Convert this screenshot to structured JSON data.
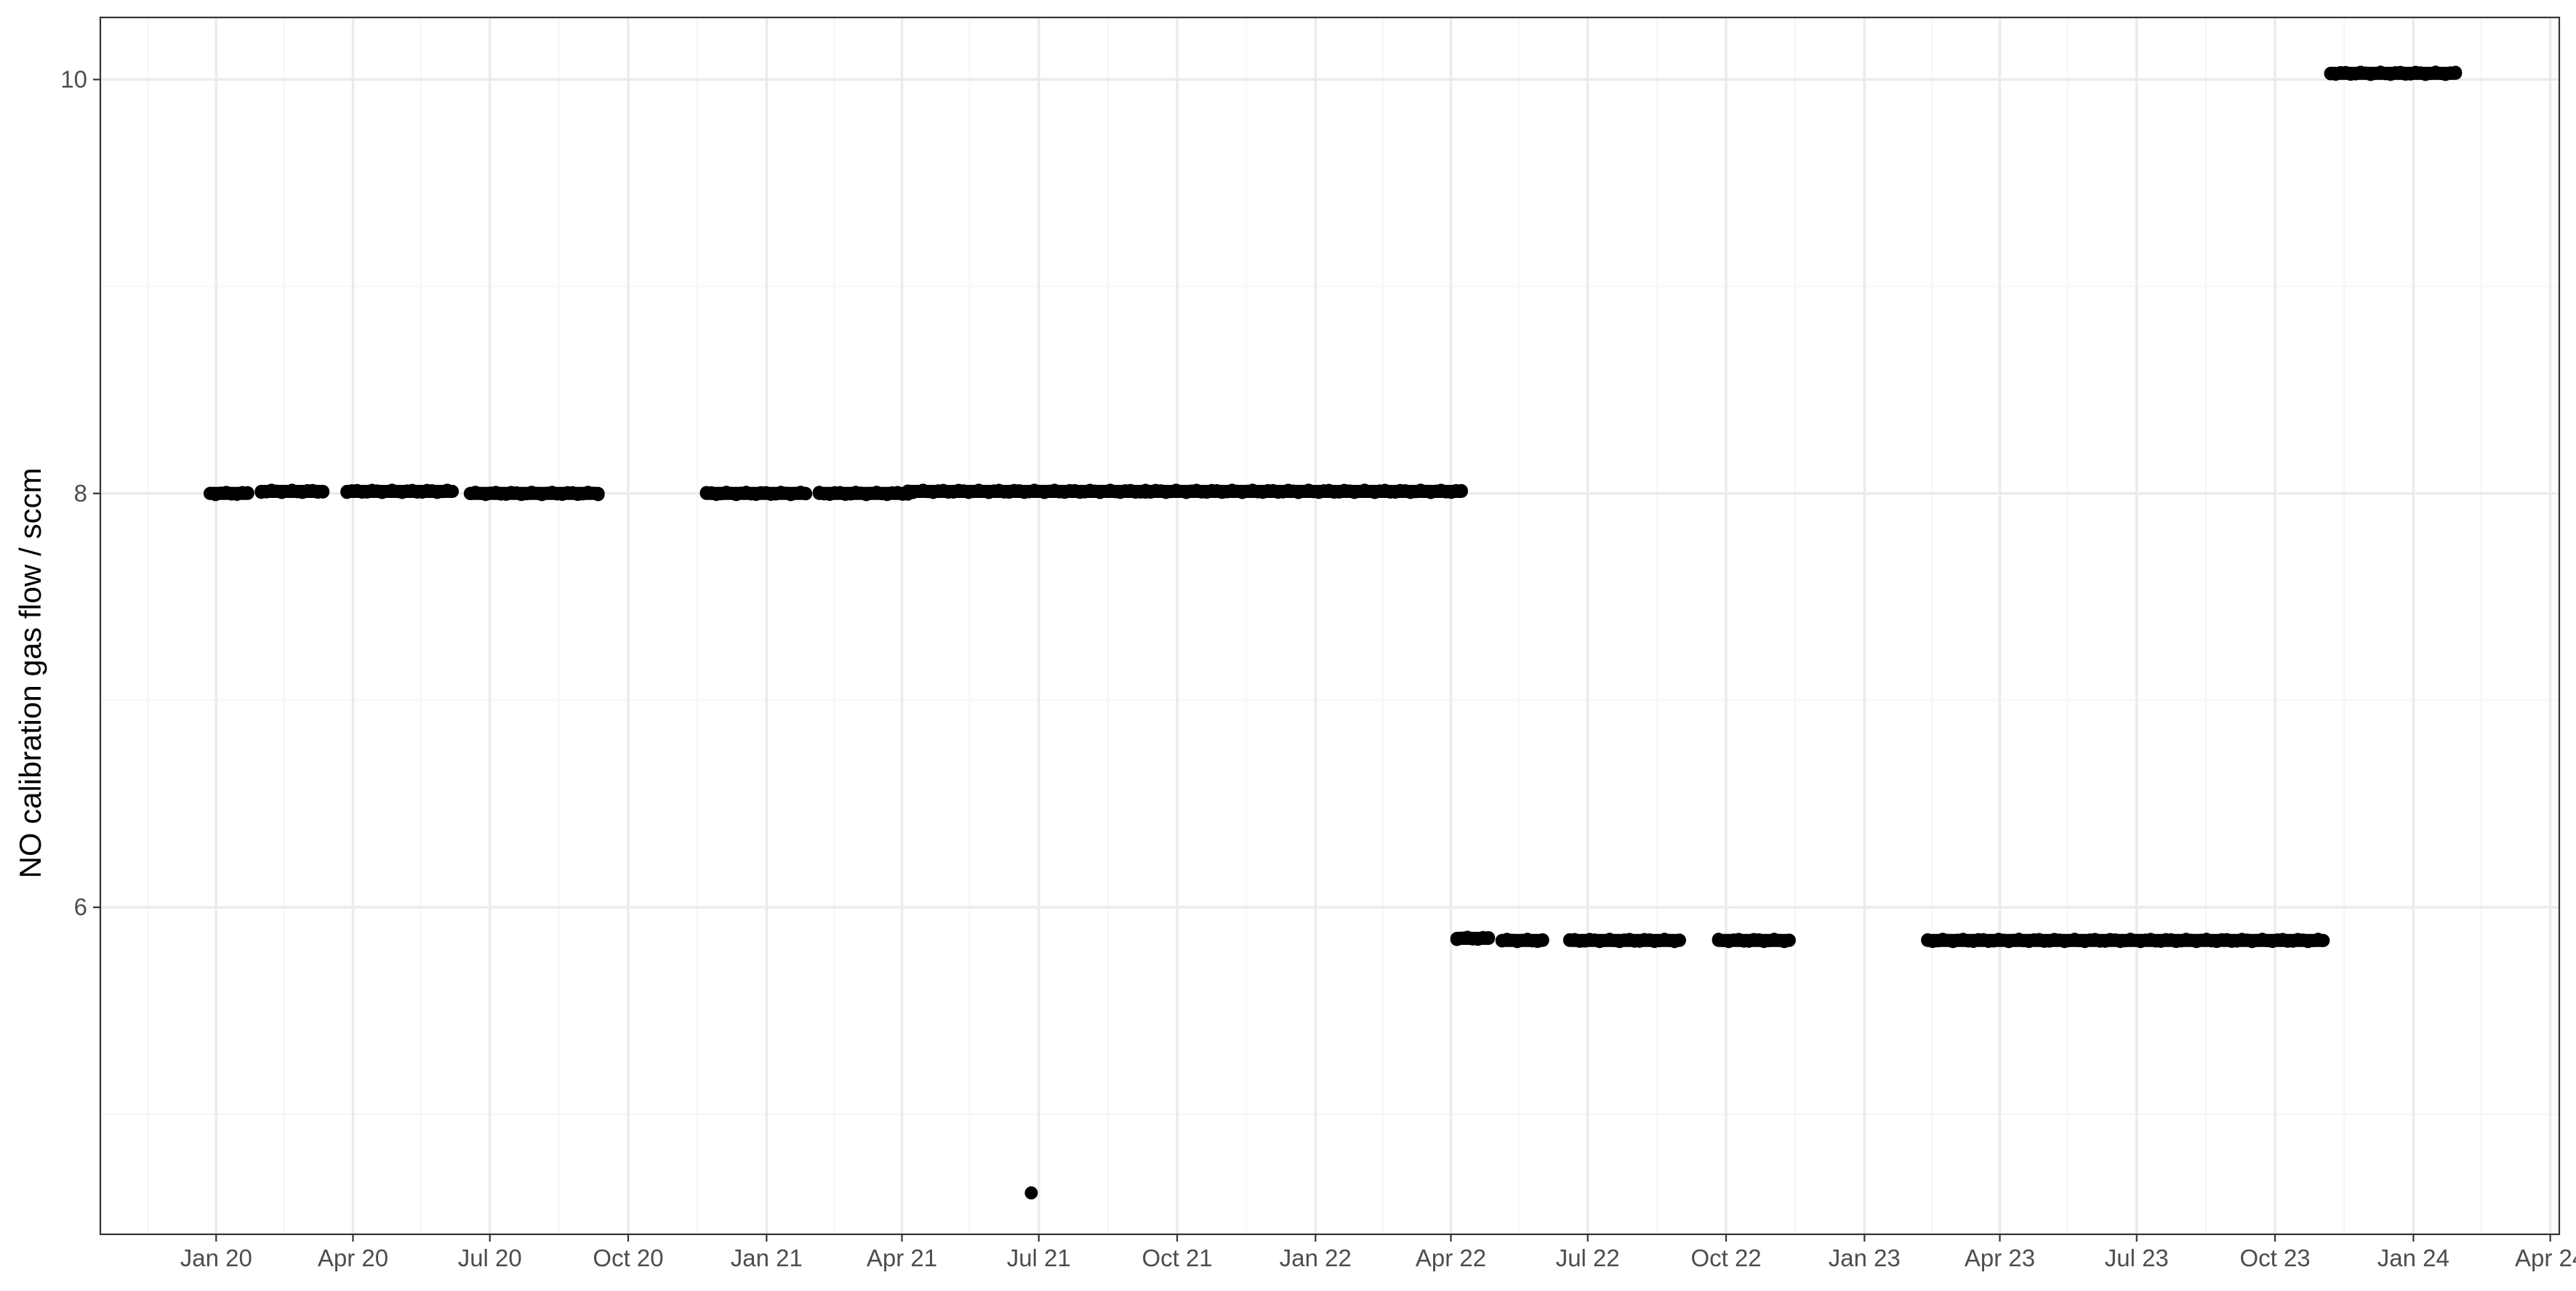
{
  "chart_data": {
    "type": "scatter",
    "ylabel": "NO calibration gas flow / sccm",
    "xlabel": "",
    "title": "",
    "x_range": [
      "2019-10-16",
      "2024-04-07"
    ],
    "ylim": [
      4.42,
      10.3
    ],
    "x_ticks": [
      {
        "date": "2020-01-01",
        "label": "Jan 20"
      },
      {
        "date": "2020-04-01",
        "label": "Apr 20"
      },
      {
        "date": "2020-07-01",
        "label": "Jul 20"
      },
      {
        "date": "2020-10-01",
        "label": "Oct 20"
      },
      {
        "date": "2021-01-01",
        "label": "Jan 21"
      },
      {
        "date": "2021-04-01",
        "label": "Apr 21"
      },
      {
        "date": "2021-07-01",
        "label": "Jul 21"
      },
      {
        "date": "2021-10-01",
        "label": "Oct 21"
      },
      {
        "date": "2022-01-01",
        "label": "Jan 22"
      },
      {
        "date": "2022-04-01",
        "label": "Apr 22"
      },
      {
        "date": "2022-07-01",
        "label": "Jul 22"
      },
      {
        "date": "2022-10-01",
        "label": "Oct 22"
      },
      {
        "date": "2023-01-01",
        "label": "Jan 23"
      },
      {
        "date": "2023-04-01",
        "label": "Apr 23"
      },
      {
        "date": "2023-07-01",
        "label": "Jul 23"
      },
      {
        "date": "2023-10-01",
        "label": "Oct 23"
      },
      {
        "date": "2024-01-01",
        "label": "Jan 24"
      },
      {
        "date": "2024-04-01",
        "label": "Apr 24"
      }
    ],
    "y_ticks": [
      6,
      8,
      10
    ],
    "grid": true,
    "point_color": "#000000",
    "panel_border_color": "#333333",
    "grid_major_color": "#ebebeb",
    "grid_minor_color": "#f5f5f5",
    "segments": [
      {
        "start": "2019-12-28",
        "end": "2020-01-22",
        "y": 8.0
      },
      {
        "start": "2020-01-31",
        "end": "2020-03-12",
        "y": 8.01
      },
      {
        "start": "2020-03-28",
        "end": "2020-06-06",
        "y": 8.01
      },
      {
        "start": "2020-06-18",
        "end": "2020-09-11",
        "y": 8.0
      },
      {
        "start": "2020-11-22",
        "end": "2021-01-27",
        "y": 8.0
      },
      {
        "start": "2021-02-05",
        "end": "2021-04-05",
        "y": 8.0
      },
      {
        "start": "2021-04-05",
        "end": "2021-09-10",
        "y": 8.01
      },
      {
        "start": "2021-09-10",
        "end": "2022-04-08",
        "y": 8.01
      },
      {
        "start": "2022-04-05",
        "end": "2022-04-26",
        "y": 5.85
      },
      {
        "start": "2022-05-05",
        "end": "2022-06-01",
        "y": 5.84
      },
      {
        "start": "2022-06-19",
        "end": "2022-08-31",
        "y": 5.84
      },
      {
        "start": "2022-09-26",
        "end": "2022-11-12",
        "y": 5.84
      },
      {
        "start": "2023-02-12",
        "end": "2023-11-02",
        "y": 5.84
      },
      {
        "start": "2023-11-07",
        "end": "2024-01-29",
        "y": 10.03
      }
    ],
    "points": [
      {
        "x": "2021-06-26",
        "y": 4.62
      }
    ]
  }
}
